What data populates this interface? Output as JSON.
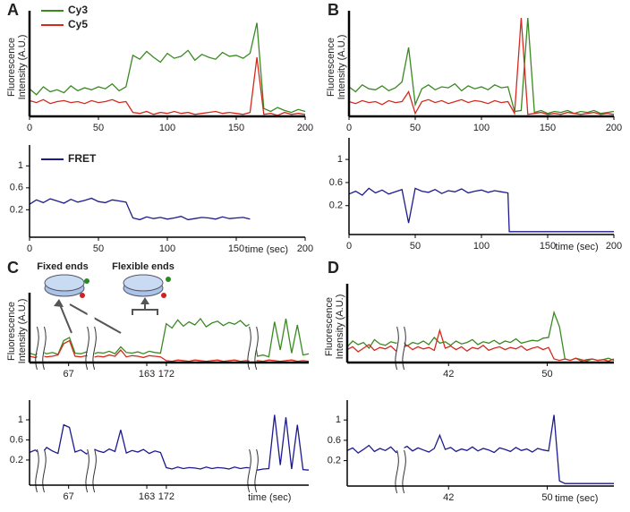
{
  "chart_data": [
    {
      "type": "line",
      "panel": "A",
      "ylabel": [
        "Fluorescence",
        "Intensity (A.U.)"
      ],
      "legend": "top-left",
      "x": [
        0,
        5,
        10,
        15,
        20,
        25,
        30,
        35,
        40,
        45,
        50,
        55,
        60,
        65,
        70,
        75,
        80,
        85,
        90,
        95,
        100,
        105,
        110,
        115,
        120,
        125,
        130,
        135,
        140,
        145,
        150,
        155,
        160,
        165,
        170,
        175,
        180,
        185,
        190,
        195,
        200
      ],
      "xlim": [
        0,
        200
      ],
      "xticks": [
        0,
        50,
        100,
        150,
        200
      ],
      "ylim": [
        0,
        100
      ],
      "series": [
        {
          "name": "Cy3",
          "color": "#3a8a22",
          "values": [
            28,
            22,
            30,
            25,
            27,
            24,
            31,
            26,
            29,
            27,
            30,
            28,
            33,
            26,
            30,
            62,
            58,
            66,
            60,
            55,
            64,
            59,
            61,
            67,
            57,
            63,
            60,
            58,
            65,
            61,
            62,
            59,
            64,
            95,
            8,
            5,
            9,
            6,
            4,
            7,
            5
          ]
        },
        {
          "name": "Cy5",
          "color": "#d42a1e",
          "values": [
            16,
            14,
            17,
            13,
            15,
            16,
            14,
            15,
            13,
            16,
            14,
            15,
            17,
            14,
            15,
            4,
            3,
            5,
            2,
            4,
            3,
            5,
            3,
            4,
            2,
            3,
            4,
            5,
            3,
            4,
            3,
            2,
            4,
            60,
            2,
            3,
            1,
            4,
            2,
            3,
            2
          ]
        }
      ]
    },
    {
      "type": "line",
      "legend": "top-left",
      "xlabel": "time (sec)",
      "x": [
        0,
        5,
        10,
        15,
        20,
        25,
        30,
        35,
        40,
        45,
        50,
        55,
        60,
        65,
        70,
        75,
        80,
        85,
        90,
        95,
        100,
        105,
        110,
        115,
        120,
        125,
        130,
        135,
        140,
        145,
        150,
        155,
        160
      ],
      "xlim": [
        0,
        200
      ],
      "xticks": [
        0,
        50,
        100,
        150,
        200
      ],
      "ylim": [
        -0.3,
        1.25
      ],
      "yticks": [
        0.2,
        0.6,
        1
      ],
      "series": [
        {
          "name": "FRET",
          "color": "#1c1a8e",
          "values": [
            0.3,
            0.38,
            0.33,
            0.4,
            0.36,
            0.32,
            0.39,
            0.34,
            0.37,
            0.41,
            0.35,
            0.33,
            0.38,
            0.36,
            0.34,
            0.05,
            0.02,
            0.07,
            0.04,
            0.06,
            0.03,
            0.05,
            0.08,
            0.02,
            0.04,
            0.06,
            0.05,
            0.03,
            0.07,
            0.04,
            0.05,
            0.06,
            0.03
          ]
        }
      ]
    },
    {
      "type": "line",
      "panel": "B",
      "ylabel": [
        "Fluorescence",
        "Intensity (A.U.)"
      ],
      "x": [
        0,
        5,
        10,
        15,
        20,
        25,
        30,
        35,
        40,
        45,
        50,
        55,
        60,
        65,
        70,
        75,
        80,
        85,
        90,
        95,
        100,
        105,
        110,
        115,
        120,
        125,
        130,
        135,
        140,
        145,
        150,
        155,
        160,
        165,
        170,
        175,
        180,
        185,
        190,
        195,
        200
      ],
      "xlim": [
        0,
        200
      ],
      "xticks": [
        0,
        50,
        100,
        150,
        200
      ],
      "ylim": [
        0,
        100
      ],
      "series": [
        {
          "name": "Cy3",
          "color": "#3a8a22",
          "values": [
            30,
            25,
            32,
            28,
            27,
            31,
            26,
            29,
            35,
            70,
            12,
            28,
            32,
            27,
            30,
            29,
            33,
            26,
            31,
            28,
            30,
            27,
            32,
            29,
            30,
            5,
            6,
            100,
            4,
            6,
            3,
            5,
            4,
            6,
            3,
            5,
            4,
            6,
            3,
            4,
            5
          ]
        },
        {
          "name": "Cy5",
          "color": "#d42a1e",
          "values": [
            15,
            13,
            16,
            14,
            15,
            12,
            16,
            14,
            15,
            25,
            3,
            15,
            17,
            14,
            16,
            13,
            15,
            17,
            14,
            16,
            15,
            13,
            16,
            14,
            15,
            3,
            100,
            2,
            3,
            4,
            2,
            3,
            2,
            4,
            3,
            2,
            3,
            4,
            2,
            3,
            2
          ]
        }
      ]
    },
    {
      "type": "line",
      "xlabel": "time (sec)",
      "x": [
        0,
        5,
        10,
        15,
        20,
        25,
        30,
        35,
        40,
        45,
        50,
        55,
        60,
        65,
        70,
        75,
        80,
        85,
        90,
        95,
        100,
        105,
        110,
        115,
        120,
        121,
        200
      ],
      "xlim": [
        0,
        200
      ],
      "xticks": [
        0,
        50,
        100,
        150,
        200
      ],
      "ylim": [
        -0.3,
        1.25
      ],
      "yticks": [
        0.2,
        0.6,
        1
      ],
      "series": [
        {
          "name": "FRET",
          "color": "#1c1a8e",
          "values": [
            0.4,
            0.45,
            0.38,
            0.5,
            0.42,
            0.47,
            0.4,
            0.44,
            0.48,
            -0.1,
            0.5,
            0.45,
            0.43,
            0.48,
            0.41,
            0.46,
            0.44,
            0.49,
            0.42,
            0.45,
            0.47,
            0.43,
            0.46,
            0.44,
            0.42,
            -0.25,
            -0.25
          ]
        }
      ]
    },
    {
      "type": "line",
      "panel": "C",
      "ylabel": [
        "Fluorescence",
        "Intensity (A.U.)"
      ],
      "xtick_labels": [
        "67",
        "163",
        "172"
      ],
      "ylim": [
        0,
        100
      ],
      "annotations": [
        "Fixed ends",
        "Flexible ends"
      ],
      "series": [
        {
          "name": "Cy3",
          "color": "#3a8a22",
          "values": [
            15,
            12,
            18,
            14,
            16,
            13,
            35,
            40,
            15,
            14,
            17,
            13,
            16,
            15,
            18,
            14,
            25,
            16,
            15,
            17,
            14,
            18,
            16,
            15,
            62,
            55,
            68,
            58,
            65,
            60,
            70,
            57,
            63,
            66,
            59,
            64,
            61,
            67,
            58,
            63,
            10,
            12,
            9,
            65,
            20,
            70,
            15,
            60,
            12,
            14
          ]
        },
        {
          "name": "Cy5",
          "color": "#d42a1e",
          "values": [
            10,
            8,
            11,
            9,
            10,
            12,
            30,
            35,
            10,
            9,
            11,
            8,
            10,
            9,
            12,
            10,
            20,
            9,
            11,
            10,
            8,
            11,
            10,
            9,
            3,
            2,
            4,
            3,
            2,
            4,
            3,
            2,
            3,
            4,
            2,
            3,
            4,
            2,
            3,
            2,
            3,
            2,
            4,
            3,
            2,
            3,
            4,
            2,
            3,
            2
          ]
        }
      ]
    },
    {
      "type": "line",
      "xlabel": "time (sec)",
      "xtick_labels": [
        "67",
        "163",
        "172"
      ],
      "ylim": [
        -0.3,
        1.25
      ],
      "yticks": [
        0.2,
        0.6,
        1
      ],
      "series": [
        {
          "name": "FRET",
          "color": "#1c1a8e",
          "values": [
            0.35,
            0.4,
            0.3,
            0.45,
            0.38,
            0.33,
            0.9,
            0.85,
            0.36,
            0.4,
            0.32,
            0.44,
            0.38,
            0.35,
            0.42,
            0.37,
            0.8,
            0.34,
            0.39,
            0.36,
            0.41,
            0.33,
            0.38,
            0.35,
            0.05,
            0.02,
            0.06,
            0.03,
            0.05,
            0.04,
            0.02,
            0.06,
            0.03,
            0.05,
            0.04,
            0.02,
            0.06,
            0.03,
            0.05,
            0.04,
            0.0,
            0.02,
            0.03,
            1.1,
            0.1,
            1.05,
            0.02,
            0.9,
            0.01,
            0.0
          ]
        }
      ]
    },
    {
      "type": "line",
      "panel": "D",
      "ylabel": [
        "Fluorescence",
        "Intensity (A.U.)"
      ],
      "xtick_labels": [
        "42",
        "50"
      ],
      "ylim": [
        0,
        100
      ],
      "series": [
        {
          "name": "Cy3",
          "color": "#3a8a22",
          "values": [
            22,
            30,
            25,
            28,
            20,
            32,
            26,
            24,
            29,
            27,
            31,
            23,
            28,
            26,
            30,
            25,
            35,
            27,
            29,
            24,
            30,
            26,
            28,
            32,
            25,
            29,
            27,
            31,
            26,
            30,
            28,
            33,
            27,
            29,
            31,
            30,
            34,
            35,
            70,
            50,
            5,
            3,
            6,
            4,
            2,
            5,
            3,
            4,
            6,
            3
          ]
        },
        {
          "name": "Cy5",
          "color": "#d42a1e",
          "values": [
            18,
            22,
            15,
            20,
            25,
            17,
            21,
            19,
            23,
            16,
            20,
            24,
            18,
            22,
            19,
            21,
            17,
            45,
            20,
            23,
            18,
            22,
            16,
            21,
            19,
            24,
            17,
            20,
            22,
            18,
            21,
            19,
            23,
            17,
            20,
            22,
            18,
            21,
            5,
            3,
            5,
            3,
            6,
            2,
            4,
            5,
            3,
            4,
            2,
            5
          ]
        }
      ]
    },
    {
      "type": "line",
      "xlabel": "time (sec)",
      "xtick_labels": [
        "42",
        "50"
      ],
      "ylim": [
        -0.3,
        1.25
      ],
      "yticks": [
        0.2,
        0.6,
        1
      ],
      "series": [
        {
          "name": "FRET",
          "color": "#1c1a8e",
          "values": [
            0.4,
            0.45,
            0.35,
            0.42,
            0.5,
            0.38,
            0.44,
            0.4,
            0.47,
            0.36,
            0.43,
            0.48,
            0.39,
            0.45,
            0.41,
            0.37,
            0.44,
            0.7,
            0.42,
            0.46,
            0.38,
            0.43,
            0.4,
            0.47,
            0.39,
            0.44,
            0.41,
            0.36,
            0.45,
            0.42,
            0.38,
            0.46,
            0.4,
            0.43,
            0.37,
            0.44,
            0.41,
            0.39,
            1.1,
            -0.2,
            -0.25,
            -0.25,
            -0.25,
            -0.25,
            -0.25,
            -0.25,
            -0.25,
            -0.25,
            -0.25,
            -0.25
          ]
        }
      ]
    }
  ]
}
